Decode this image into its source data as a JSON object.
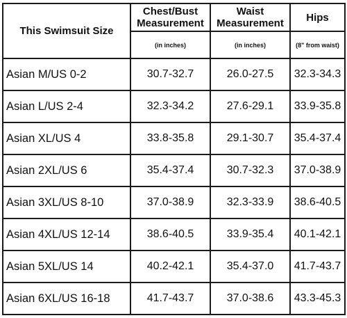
{
  "headers": {
    "size": "This Swimsuit Size",
    "chest_line1": "Chest/Bust",
    "chest_line2": "Measurement",
    "chest_unit": "(in inches)",
    "waist_line1": "Waist",
    "waist_line2": "Measurement",
    "waist_unit": "(in inches)",
    "hips": "Hips",
    "hips_note": "(8\" from waist)"
  },
  "rows": [
    {
      "size": "Asian M/US 0-2",
      "chest": "30.7-32.7",
      "waist": "26.0-27.5",
      "hips": "32.3-34.3"
    },
    {
      "size": "Asian L/US 2-4",
      "chest": "32.3-34.2",
      "waist": "27.6-29.1",
      "hips": "33.9-35.8"
    },
    {
      "size": "Asian XL/US 4",
      "chest": "33.8-35.8",
      "waist": "29.1-30.7",
      "hips": "35.4-37.4"
    },
    {
      "size": "Asian 2XL/US 6",
      "chest": "35.4-37.4",
      "waist": "30.7-32.3",
      "hips": "37.0-38.9"
    },
    {
      "size": "Asian 3XL/US 8-10",
      "chest": "37.0-38.9",
      "waist": "32.3-33.9",
      "hips": "38.6-40.5"
    },
    {
      "size": "Asian 4XL/US 12-14",
      "chest": "38.6-40.5",
      "waist": "33.9-35.4",
      "hips": "40.1-42.1"
    },
    {
      "size": "Asian 5XL/US 14",
      "chest": "40.2-42.1",
      "waist": "35.4-37.0",
      "hips": "41.7-43.7"
    },
    {
      "size": "Asian 6XL/US 16-18",
      "chest": "41.7-43.7",
      "waist": "37.0-38.6",
      "hips": "43.3-45.3"
    }
  ]
}
